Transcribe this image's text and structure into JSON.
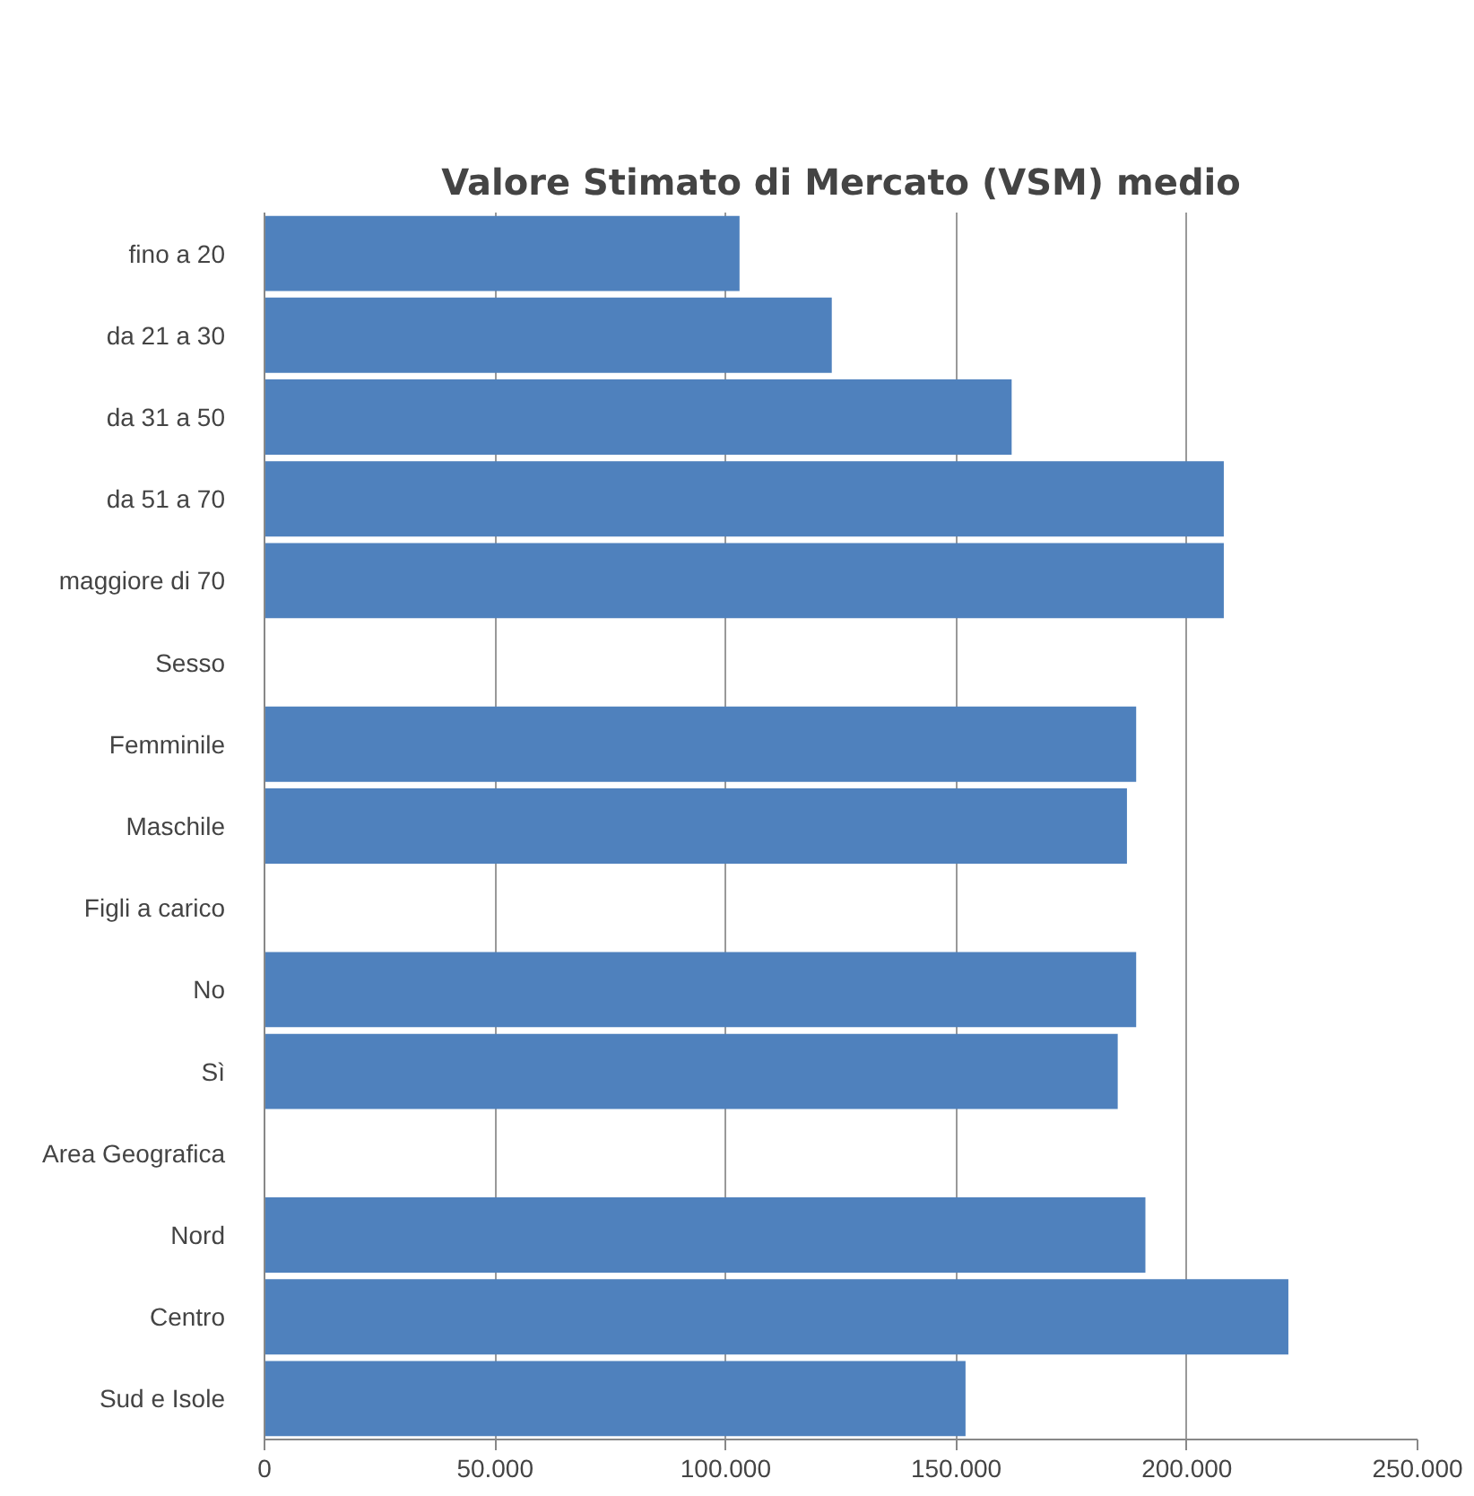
{
  "chart_data": {
    "type": "bar",
    "orientation": "horizontal",
    "title": "Valore Stimato di Mercato (VSM) medio",
    "categories": [
      "fino a 20",
      "da 21 a 30",
      "da 31 a 50",
      "da 51 a 70",
      "maggiore di 70",
      "Sesso",
      "Femminile",
      "Maschile",
      "Figli a carico",
      "No",
      "Sì",
      "Area Geografica",
      "Nord",
      "Centro",
      "Sud e Isole"
    ],
    "values": [
      103000,
      123000,
      162000,
      208000,
      208000,
      null,
      189000,
      187000,
      null,
      189000,
      185000,
      null,
      191000,
      222000,
      152000
    ],
    "color": "#4f81bd",
    "xlim": [
      0,
      250000
    ],
    "xticks": [
      0,
      {
        "value": 50000,
        "label": "50.000"
      },
      {
        "value": 100000,
        "label": "100.000"
      },
      {
        "value": 150000,
        "label": "150.000"
      },
      {
        "value": 200000,
        "label": "200.000"
      },
      {
        "value": 250000,
        "label": "250.000"
      }
    ],
    "grid": "x"
  }
}
